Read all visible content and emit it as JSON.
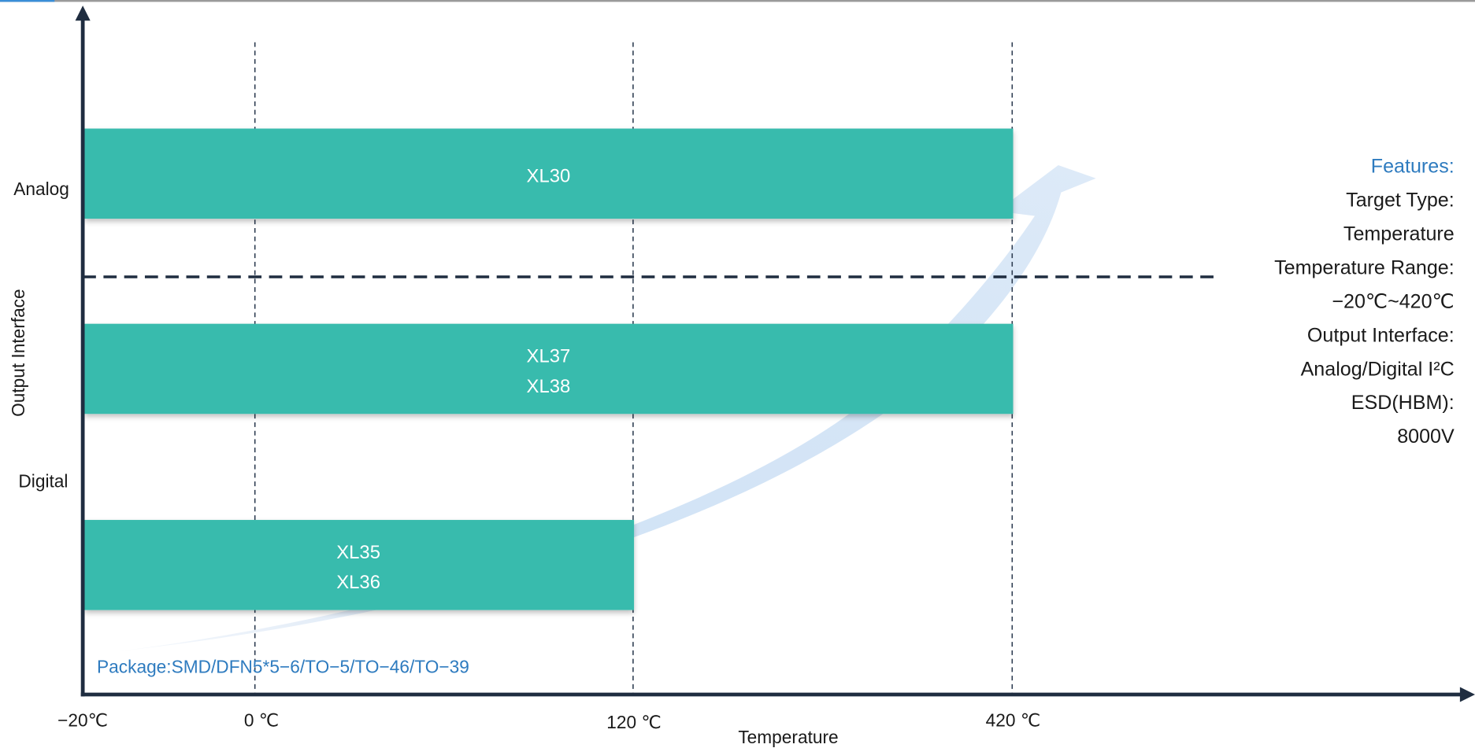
{
  "axes": {
    "y_title": "Output Interface",
    "x_title": "Temperature",
    "y_labels": [
      "Analog",
      "Digital"
    ],
    "x_ticks": [
      "−20℃",
      "0 ℃",
      "120 ℃",
      "420 ℃"
    ]
  },
  "bars": [
    {
      "labels": [
        "XL30"
      ]
    },
    {
      "labels": [
        "XL37",
        "XL38"
      ]
    },
    {
      "labels": [
        "XL35",
        "XL36"
      ]
    }
  ],
  "package": "Package:SMD/DFN5*5−6/TO−5/TO−46/TO−39",
  "features": {
    "title": "Features:",
    "lines": [
      "Target Type:",
      "Temperature",
      "Temperature Range:",
      "−20℃~420℃",
      "Output Interface:",
      "Analog/Digital I²C",
      "ESD(HBM):",
      "8000V"
    ]
  }
}
